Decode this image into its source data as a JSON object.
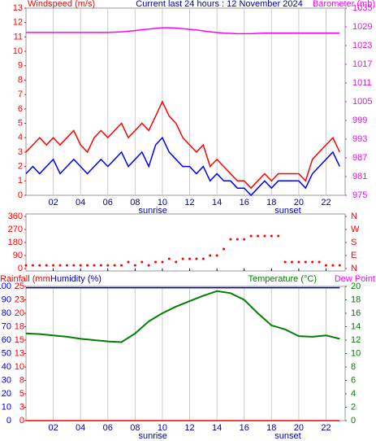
{
  "chart_data": [
    {
      "type": "line",
      "title": "Current last 24 hours : 12 November 2024",
      "ylabel": "Windspeed (m/s)",
      "y2label": "Barometer (mb)",
      "annotations": [
        "sunrise",
        "sunset"
      ],
      "x": [
        0,
        0.5,
        1,
        1.5,
        2,
        2.5,
        3,
        3.5,
        4,
        4.5,
        5,
        5.5,
        6,
        6.5,
        7,
        7.5,
        8,
        8.5,
        9,
        9.5,
        10,
        10.5,
        11,
        11.5,
        12,
        12.5,
        13,
        13.5,
        14,
        14.5,
        15,
        15.5,
        16,
        16.5,
        17,
        17.5,
        18,
        18.5,
        19,
        19.5,
        20,
        20.5,
        21,
        21.5,
        22,
        22.5,
        23
      ],
      "xlim": [
        0,
        23.4
      ],
      "xticks": [
        {
          "value": 2,
          "label": "02"
        },
        {
          "value": 4,
          "label": "04"
        },
        {
          "value": 6,
          "label": "06"
        },
        {
          "value": 8,
          "label": "08"
        },
        10,
        12,
        14,
        16,
        18,
        20,
        22
      ],
      "ylim": [
        0,
        13
      ],
      "yticks": [
        0,
        1,
        2,
        3,
        4,
        5,
        6,
        7,
        8,
        9,
        10,
        11,
        12,
        13
      ],
      "y2lim": [
        975,
        1035
      ],
      "y2ticks": [
        975,
        981,
        987,
        993,
        999,
        1005,
        1011,
        1017,
        1023,
        1029,
        1035
      ],
      "grid": true,
      "series": [
        {
          "color": "#ff0000",
          "values": [
            3,
            3.5,
            4,
            3.5,
            4,
            3.5,
            4,
            4.5,
            3.5,
            3,
            4,
            4.5,
            4,
            4.5,
            5,
            4,
            4.5,
            5,
            4.5,
            5.5,
            6.5,
            5.5,
            5,
            4,
            3.5,
            3,
            3.5,
            2,
            2.5,
            2,
            1.5,
            1,
            1,
            0.5,
            1,
            1.5,
            1,
            1.5,
            1.5,
            1.5,
            1.5,
            1,
            2.5,
            3,
            3.5,
            4,
            3
          ]
        },
        {
          "color": "#0000ff",
          "values": [
            1.5,
            2,
            1.5,
            2,
            2.5,
            1.5,
            2,
            2.5,
            2,
            1.5,
            2,
            2.5,
            2,
            2.5,
            3,
            2,
            2.5,
            3,
            2,
            3.5,
            4,
            3,
            2.5,
            2,
            2,
            1.5,
            2,
            1,
            1.5,
            1,
            1,
            0.5,
            0.5,
            0,
            0.5,
            1,
            0.5,
            1,
            1,
            1,
            1,
            0.5,
            1.5,
            2,
            2.5,
            3,
            2
          ]
        },
        {
          "color": "#ff00ff",
          "axis": "y2",
          "values": [
            1027.2,
            1027.2,
            1027.2,
            1027.2,
            1027.2,
            1027.2,
            1027.2,
            1027.2,
            1027.2,
            1027.2,
            1027.2,
            1027.2,
            1027.2,
            1027.3,
            1027.4,
            1027.6,
            1027.8,
            1028.1,
            1028.3,
            1028.5,
            1028.7,
            1028.7,
            1028.6,
            1028.4,
            1028.2,
            1028,
            1027.7,
            1027.4,
            1027.2,
            1027,
            1026.9,
            1026.8,
            1026.8,
            1026.8,
            1026.9,
            1027,
            1027,
            1027,
            1027,
            1027,
            1027,
            1027,
            1027,
            1027,
            1027,
            1027,
            1027
          ]
        }
      ]
    },
    {
      "type": "scatter",
      "x": [
        0,
        0.5,
        1,
        1.5,
        2,
        2.5,
        3,
        3.5,
        4,
        4.5,
        5,
        5.5,
        6,
        6.5,
        7,
        7.5,
        8,
        8.5,
        9,
        9.5,
        10,
        10.5,
        11,
        11.5,
        12,
        12.5,
        13,
        13.5,
        14,
        14.5,
        15,
        15.5,
        16,
        16.5,
        17,
        17.5,
        18,
        18.5,
        19,
        19.5,
        20,
        20.5,
        21,
        21.5,
        22,
        22.5,
        23
      ],
      "xlim": [
        0,
        23.4
      ],
      "xticks": [
        {
          "value": 2,
          "label": "02"
        },
        {
          "value": 4,
          "label": "04"
        },
        {
          "value": 6,
          "label": "06"
        },
        {
          "value": 8,
          "label": "08"
        },
        10,
        12,
        14,
        16,
        18,
        20,
        22
      ],
      "ylim": [
        0,
        360
      ],
      "yticks": [
        0,
        90,
        180,
        270,
        360
      ],
      "y2lim": [
        0,
        360
      ],
      "y2ticks": [
        {
          "value": 0,
          "label": "N"
        },
        {
          "value": 90,
          "label": "E"
        },
        {
          "value": 180,
          "label": "S"
        },
        {
          "value": 270,
          "label": "W"
        },
        {
          "value": 360,
          "label": "N"
        }
      ],
      "color": "#ff0000",
      "values": [
        22,
        22,
        22,
        22,
        22,
        22,
        22,
        22,
        22,
        22,
        22,
        22,
        22,
        22,
        22,
        45,
        22,
        45,
        22,
        45,
        45,
        67,
        45,
        67,
        67,
        67,
        67,
        90,
        90,
        135,
        202,
        202,
        202,
        225,
        225,
        225,
        225,
        225,
        45,
        45,
        45,
        45,
        45,
        45,
        22,
        22,
        22
      ]
    },
    {
      "type": "line",
      "labels": [
        "Rainfall (mm",
        "Humidity (%)",
        "Temperature (°C)",
        "Dew Point"
      ],
      "annotations": [
        "sunrise",
        "sunset"
      ],
      "x": [
        0,
        1,
        2,
        3,
        4,
        5,
        6,
        7,
        8,
        9,
        10,
        11,
        12,
        13,
        14,
        15,
        16,
        17,
        18,
        19,
        20,
        21,
        22,
        23
      ],
      "xlim": [
        0,
        23.4
      ],
      "xticks": [
        {
          "value": 2,
          "label": "02"
        },
        {
          "value": 4,
          "label": "04"
        },
        {
          "value": 6,
          "label": "06"
        },
        {
          "value": 8,
          "label": "08"
        },
        10,
        12,
        14,
        16,
        18,
        20,
        22
      ],
      "ylim": [
        0,
        100
      ],
      "yticks": [
        0,
        10,
        20,
        30,
        40,
        50,
        60,
        70,
        80,
        90,
        100
      ],
      "rainlim": [
        0,
        25
      ],
      "rainticks": [
        0,
        {
          "value": 2.5,
          "label": "3"
        },
        5,
        {
          "value": 7.5,
          "label": "8"
        },
        10,
        {
          "value": 12.5,
          "label": "13"
        },
        15,
        {
          "value": 17.5,
          "label": "18"
        },
        20,
        {
          "value": 22.5,
          "label": "23"
        },
        25
      ],
      "y2lim": [
        0,
        20
      ],
      "y2ticks": [
        0,
        2,
        4,
        6,
        8,
        10,
        12,
        14,
        16,
        18,
        20
      ],
      "grid": true,
      "series": [
        {
          "color": "#ff0000",
          "axis": "rain",
          "values": [
            0,
            0,
            0,
            0,
            0,
            0,
            0,
            0,
            0,
            0,
            0,
            0,
            0,
            0,
            0,
            0,
            0,
            0,
            0,
            0,
            0,
            0,
            0,
            0
          ]
        },
        {
          "color": "#0000cc",
          "axis": "y",
          "values": [
            99,
            99,
            99,
            99,
            99,
            99,
            99,
            99,
            99,
            99,
            99,
            99,
            99,
            99,
            99,
            99,
            99,
            99,
            99,
            99,
            99,
            99,
            99,
            99
          ]
        },
        {
          "color": "#008000",
          "axis": "y2",
          "values": [
            13,
            12.9,
            12.7,
            12.5,
            12.2,
            12,
            11.8,
            11.7,
            13,
            14.8,
            16,
            17,
            17.8,
            18.6,
            19.3,
            19,
            18,
            16,
            14.2,
            13.6,
            12.6,
            12.5,
            12.7,
            12.2
          ]
        }
      ]
    }
  ]
}
